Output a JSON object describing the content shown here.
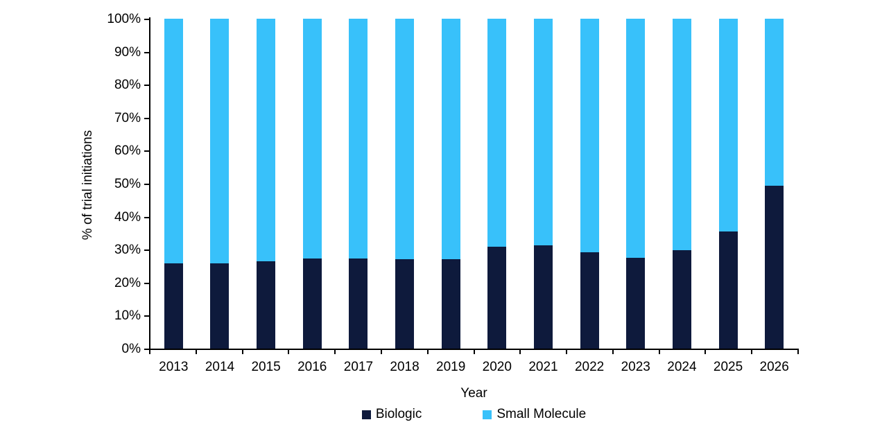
{
  "chart_data": {
    "type": "bar",
    "stacked": true,
    "percent_stacked": true,
    "title": "",
    "xlabel": "Year",
    "ylabel": "% of trial initiations",
    "categories": [
      "2013",
      "2014",
      "2015",
      "2016",
      "2017",
      "2018",
      "2019",
      "2020",
      "2021",
      "2022",
      "2023",
      "2024",
      "2025",
      "2026"
    ],
    "series": [
      {
        "name": "Biologic",
        "color": "#0E1A3C",
        "values": [
          25.9,
          25.9,
          26.4,
          27.4,
          27.3,
          27.0,
          27.2,
          30.9,
          31.4,
          29.2,
          27.6,
          29.9,
          35.4,
          49.3
        ]
      },
      {
        "name": "Small Molecule",
        "color": "#38C1FA",
        "values": [
          74.1,
          74.1,
          73.6,
          72.6,
          72.7,
          73.0,
          72.8,
          69.1,
          68.6,
          70.8,
          72.4,
          70.1,
          64.6,
          50.7
        ]
      }
    ],
    "y_axis": {
      "min": 0,
      "max": 100,
      "step": 10,
      "tick_labels": [
        "0%",
        "10%",
        "20%",
        "30%",
        "40%",
        "50%",
        "60%",
        "70%",
        "80%",
        "90%",
        "100%"
      ]
    },
    "x_axis": {
      "tick_marks": "between-categories"
    },
    "legend_position": "bottom",
    "grid": false,
    "background": "#ffffff",
    "axis_color": "#000000",
    "text_color": "#000000"
  }
}
